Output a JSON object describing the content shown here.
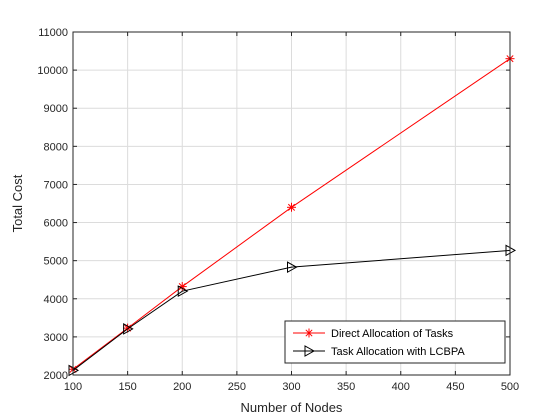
{
  "chart_data": {
    "type": "line",
    "title": "",
    "xlabel": "Number of Nodes",
    "ylabel": "Total Cost",
    "xlim": [
      100,
      500
    ],
    "ylim": [
      2000,
      11000
    ],
    "xticks": [
      100,
      150,
      200,
      250,
      300,
      350,
      400,
      450,
      500
    ],
    "yticks": [
      2000,
      3000,
      4000,
      5000,
      6000,
      7000,
      8000,
      9000,
      10000,
      11000
    ],
    "grid": true,
    "legend_position": "bottom-right",
    "series": [
      {
        "name": "Direct Allocation of Tasks",
        "color": "#ff0000",
        "marker": "asterisk",
        "x": [
          100,
          150,
          200,
          300,
          500
        ],
        "y": [
          2150,
          3230,
          4320,
          6400,
          10300
        ]
      },
      {
        "name": "Task Allocation with LCBPA",
        "color": "#000000",
        "marker": "triangle-right",
        "x": [
          100,
          150,
          200,
          300,
          500
        ],
        "y": [
          2120,
          3210,
          4200,
          4830,
          5270
        ]
      }
    ]
  }
}
